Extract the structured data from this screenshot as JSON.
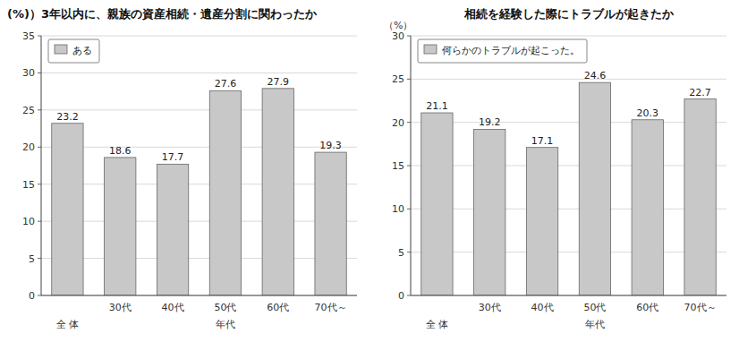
{
  "chart_data": [
    {
      "type": "bar",
      "title": "(%)）3年以内に、親族の資産相続・遺産分割に関わったか",
      "xlabel": "年代",
      "categories": [
        "全 体",
        "30代",
        "40代",
        "50代",
        "60代",
        "70代～"
      ],
      "series": [
        {
          "name": "ある",
          "color": "#c8c8c8",
          "values": [
            23.2,
            18.6,
            17.7,
            27.6,
            27.9,
            19.3
          ]
        }
      ],
      "ylim": [
        0,
        35
      ],
      "yticks": [
        0,
        5,
        10,
        15,
        20,
        25,
        30,
        35
      ],
      "grid": true,
      "legend": "upper left",
      "data_labels": true
    },
    {
      "type": "bar",
      "title": "相続を経験した際にトラブルが起きたか",
      "ylabel": "（%）",
      "xlabel": "年代",
      "categories": [
        "全 体",
        "30代",
        "40代",
        "50代",
        "60代",
        "70代～"
      ],
      "series": [
        {
          "name": "何らかのトラブルが起こった。",
          "color": "#c8c8c8",
          "values": [
            21.1,
            19.2,
            17.1,
            24.6,
            20.3,
            22.7
          ]
        }
      ],
      "ylim": [
        0,
        30
      ],
      "yticks": [
        0,
        5,
        10,
        15,
        20,
        25,
        30
      ],
      "grid": true,
      "legend": "upper left",
      "data_labels": true
    }
  ]
}
